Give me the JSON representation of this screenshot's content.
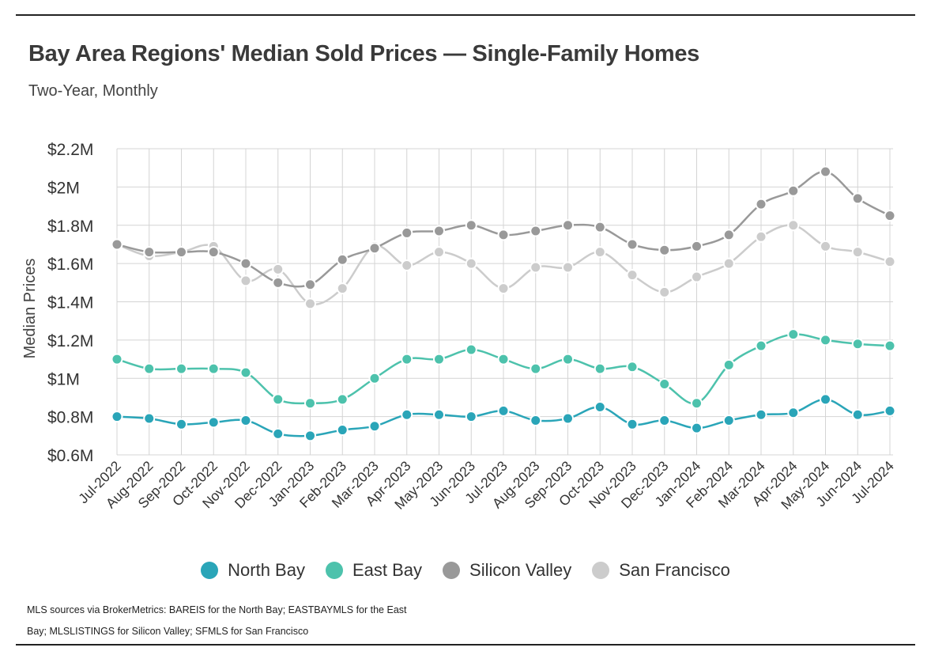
{
  "header": {
    "title": "Bay Area Regions' Median Sold Prices — Single-Family Homes",
    "subtitle": "Two-Year, Monthly"
  },
  "footnote": {
    "line1": "MLS sources via BrokerMetrics: BAREIS for the North Bay; EASTBAYMLS for the East",
    "line2": "Bay; MLSLISTINGS for Silicon Valley; SFMLS for San Francisco"
  },
  "chart_data": {
    "type": "line",
    "title": "Bay Area Regions' Median Sold Prices — Single-Family Homes",
    "subtitle": "Two-Year, Monthly",
    "xlabel": "",
    "ylabel": "Median Prices",
    "ylim": [
      0.6,
      2.2
    ],
    "yticks": [
      0.6,
      0.8,
      1.0,
      1.2,
      1.4,
      1.6,
      1.8,
      2.0,
      2.2
    ],
    "ytick_labels": [
      "$0.6M",
      "$0.8M",
      "$1M",
      "$1.2M",
      "$1.4M",
      "$1.6M",
      "$1.8M",
      "$2M",
      "$2.2M"
    ],
    "grid": true,
    "legend_position": "bottom",
    "categories": [
      "Jul-2022",
      "Aug-2022",
      "Sep-2022",
      "Oct-2022",
      "Nov-2022",
      "Dec-2022",
      "Jan-2023",
      "Feb-2023",
      "Mar-2023",
      "Apr-2023",
      "May-2023",
      "Jun-2023",
      "Jul-2023",
      "Aug-2023",
      "Sep-2023",
      "Oct-2023",
      "Nov-2023",
      "Dec-2023",
      "Jan-2024",
      "Feb-2024",
      "Mar-2024",
      "Apr-2024",
      "May-2024",
      "Jun-2024",
      "Jul-2024"
    ],
    "series": [
      {
        "name": "North Bay",
        "color": "#2aa5b8",
        "values": [
          0.8,
          0.79,
          0.76,
          0.77,
          0.78,
          0.71,
          0.7,
          0.73,
          0.75,
          0.81,
          0.81,
          0.8,
          0.83,
          0.78,
          0.79,
          0.85,
          0.76,
          0.78,
          0.74,
          0.78,
          0.81,
          0.82,
          0.89,
          0.81,
          0.83
        ]
      },
      {
        "name": "East Bay",
        "color": "#4dc2ac",
        "values": [
          1.1,
          1.05,
          1.05,
          1.05,
          1.03,
          0.89,
          0.87,
          0.89,
          1.0,
          1.1,
          1.1,
          1.15,
          1.1,
          1.05,
          1.1,
          1.05,
          1.06,
          0.97,
          0.87,
          1.07,
          1.17,
          1.23,
          1.2,
          1.18,
          1.17
        ]
      },
      {
        "name": "Silicon Valley",
        "color": "#999999",
        "values": [
          1.7,
          1.66,
          1.66,
          1.66,
          1.6,
          1.5,
          1.49,
          1.62,
          1.68,
          1.76,
          1.77,
          1.8,
          1.75,
          1.77,
          1.8,
          1.79,
          1.7,
          1.67,
          1.69,
          1.75,
          1.91,
          1.98,
          2.08,
          1.94,
          1.85
        ]
      },
      {
        "name": "San Francisco",
        "color": "#cccccc",
        "values": [
          1.7,
          1.64,
          1.66,
          1.69,
          1.51,
          1.57,
          1.39,
          1.47,
          1.69,
          1.59,
          1.66,
          1.6,
          1.47,
          1.58,
          1.58,
          1.66,
          1.54,
          1.45,
          1.53,
          1.6,
          1.74,
          1.8,
          1.69,
          1.66,
          1.61
        ]
      }
    ]
  }
}
